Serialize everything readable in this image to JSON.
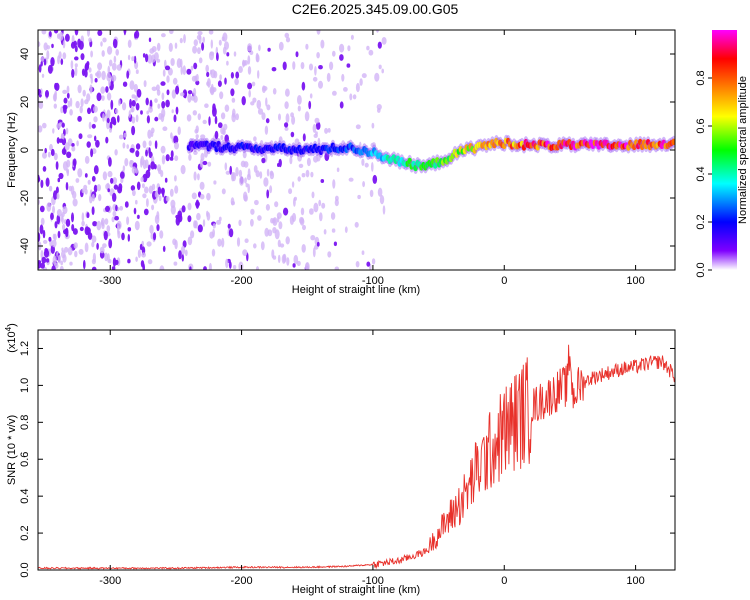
{
  "title": "C2E6.2025.345.09.00.G05",
  "chart_data": [
    {
      "type": "heatmap",
      "xlabel": "Height of straight line (km)",
      "ylabel": "Frequency (Hz)",
      "xlim": [
        -355,
        130
      ],
      "ylim": [
        -50,
        50
      ],
      "x_ticks": [
        -300,
        -200,
        -100,
        0,
        100
      ],
      "y_ticks": [
        -40,
        -20,
        0,
        20,
        40
      ],
      "colorbar": {
        "label": "Normalized spectral amplitude",
        "range": [
          0,
          1
        ],
        "ticks": [
          "0.0",
          "0.2",
          "0.4",
          "0.6",
          "0.8"
        ],
        "tick_values": [
          0,
          0.2,
          0.4,
          0.6,
          0.8
        ],
        "colors": [
          "#ffffff",
          "#7f00ff",
          "#0000ff",
          "#00ffff",
          "#00ff00",
          "#ffff00",
          "#ff8000",
          "#ff0000",
          "#ff00ff"
        ]
      },
      "noise_region": {
        "x_range": [
          -355,
          -90
        ],
        "frequency_range": [
          -50,
          50
        ]
      },
      "signal_track": {
        "x": [
          -240,
          -200,
          -150,
          -120,
          -100,
          -80,
          -60,
          -45,
          -30,
          -15,
          0,
          20,
          60,
          100,
          130
        ],
        "frequency": [
          2,
          1,
          0,
          1,
          -1,
          -5,
          -7,
          -4,
          0,
          2,
          3,
          2,
          2,
          2,
          3
        ],
        "amplitude": [
          0.15,
          0.2,
          0.2,
          0.25,
          0.35,
          0.45,
          0.5,
          0.55,
          0.65,
          0.75,
          0.8,
          0.9,
          0.95,
          0.95,
          0.9
        ]
      }
    },
    {
      "type": "line",
      "xlabel": "Height of straight line (km)",
      "ylabel": "SNR (10 * v/v)",
      "y_multiplier": "(x10",
      "y_multiplier_exp": "4",
      "xlim": [
        -355,
        130
      ],
      "ylim": [
        0,
        1.3
      ],
      "x_ticks": [
        -300,
        -200,
        -100,
        0,
        100
      ],
      "y_ticks": [
        "0.0",
        "0.2",
        "0.4",
        "0.6",
        "0.8",
        "1.0",
        "1.2"
      ],
      "y_tick_values": [
        0,
        0.2,
        0.4,
        0.6,
        0.8,
        1.0,
        1.2
      ],
      "color": "#e8302a",
      "series": [
        {
          "x": [
            -355,
            -300,
            -250,
            -200,
            -150,
            -120,
            -100,
            -80,
            -60,
            -50,
            -40,
            -30,
            -20,
            -10,
            0,
            10,
            20,
            30,
            40,
            48,
            50,
            52,
            60,
            70,
            80,
            90,
            100,
            110,
            120,
            130
          ],
          "values": [
            0.01,
            0.01,
            0.01,
            0.015,
            0.015,
            0.02,
            0.03,
            0.05,
            0.1,
            0.2,
            0.3,
            0.4,
            0.55,
            0.65,
            0.75,
            0.82,
            0.88,
            0.92,
            0.97,
            1.0,
            1.2,
            0.95,
            1.02,
            1.05,
            1.07,
            1.09,
            1.1,
            1.12,
            1.13,
            1.05
          ]
        }
      ]
    }
  ]
}
